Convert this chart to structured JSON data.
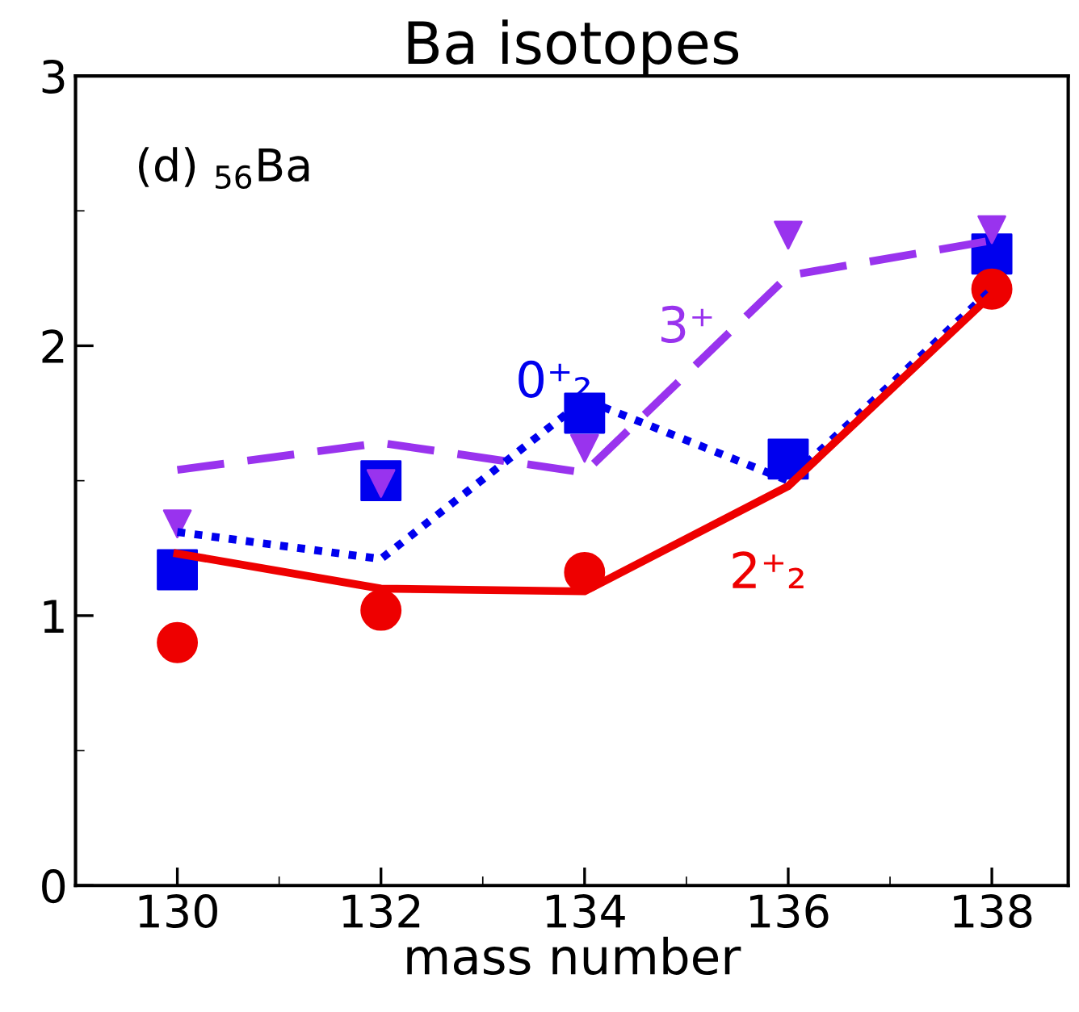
{
  "chart_data": {
    "type": "line",
    "title": "Ba isotopes",
    "xlabel": "mass number",
    "x": [
      130,
      132,
      134,
      136,
      138
    ],
    "series": [
      {
        "name": "3⁺",
        "color": "#9933ee",
        "line_style": "dashed",
        "values": [
          1.54,
          1.64,
          1.53,
          2.26,
          2.39
        ]
      },
      {
        "color": "#9933ee",
        "type": "scatter",
        "marker": "triangle",
        "values": [
          1.34,
          1.49,
          1.62,
          2.41,
          2.43
        ]
      },
      {
        "name": "0⁺₂",
        "color": "#0000ee",
        "line_style": "dotted",
        "values": [
          1.31,
          1.21,
          1.8,
          1.5,
          2.21
        ]
      },
      {
        "color": "#0000ee",
        "type": "scatter",
        "marker": "square",
        "values": [
          1.17,
          1.5,
          1.75,
          1.58,
          2.34
        ]
      },
      {
        "name": "2⁺₂",
        "color": "#ee0000",
        "line_style": "solid",
        "values": [
          1.23,
          1.1,
          1.09,
          1.48,
          2.19
        ]
      },
      {
        "color": "#ee0000",
        "type": "scatter",
        "marker": "circle",
        "values": [
          0.9,
          1.02,
          1.16,
          null,
          2.21
        ]
      }
    ],
    "annotations": [
      "(d) $_{56}$Ba"
    ],
    "xlim": [
      129,
      138.75
    ],
    "ylim": [
      0,
      3
    ],
    "xticks": [
      130,
      132,
      134,
      136,
      138
    ],
    "yticks": [
      0,
      1,
      2,
      3
    ],
    "grid": false,
    "legend": false
  }
}
